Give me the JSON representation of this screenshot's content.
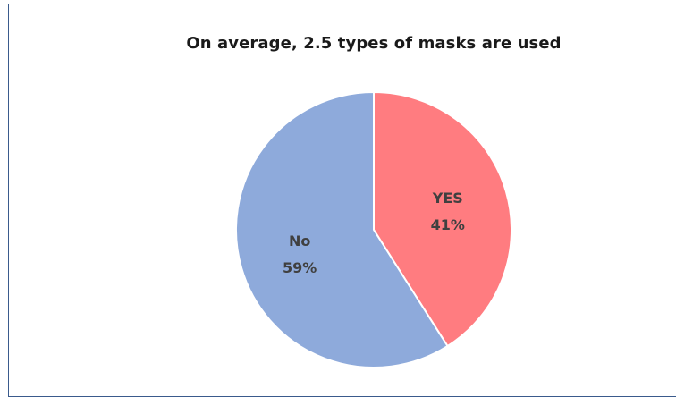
{
  "chart_data": {
    "type": "pie",
    "title": "On average, 2.5 types of masks are used",
    "slices": [
      {
        "label": "YES",
        "value": 41,
        "display": "41%",
        "color": "#ff7c80"
      },
      {
        "label": "No",
        "value": 59,
        "display": "59%",
        "color": "#8eaadb"
      }
    ],
    "legend": "none"
  }
}
